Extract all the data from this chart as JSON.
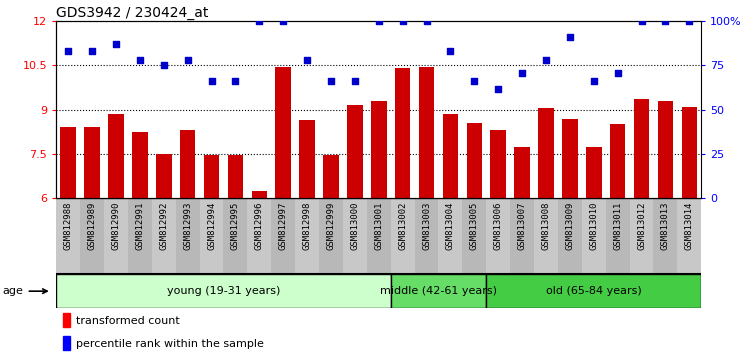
{
  "title": "GDS3942 / 230424_at",
  "samples": [
    "GSM812988",
    "GSM812989",
    "GSM812990",
    "GSM812991",
    "GSM812992",
    "GSM812993",
    "GSM812994",
    "GSM812995",
    "GSM812996",
    "GSM812997",
    "GSM812998",
    "GSM812999",
    "GSM813000",
    "GSM813001",
    "GSM813002",
    "GSM813003",
    "GSM813004",
    "GSM813005",
    "GSM813006",
    "GSM813007",
    "GSM813008",
    "GSM813009",
    "GSM813010",
    "GSM813011",
    "GSM813012",
    "GSM813013",
    "GSM813014"
  ],
  "bar_values": [
    8.4,
    8.4,
    8.85,
    8.25,
    7.5,
    8.3,
    7.45,
    7.45,
    6.25,
    10.45,
    8.65,
    7.45,
    9.15,
    9.3,
    10.4,
    10.45,
    8.85,
    8.55,
    8.3,
    7.75,
    9.05,
    8.7,
    7.75,
    8.5,
    9.35,
    9.3,
    9.1
  ],
  "scatter_pct": [
    83,
    83,
    87,
    78,
    75,
    78,
    66,
    66,
    100,
    100,
    78,
    66,
    66,
    100,
    100,
    100,
    83,
    66,
    62,
    71,
    78,
    91,
    66,
    71,
    100,
    100,
    100
  ],
  "bar_color": "#cc0000",
  "scatter_color": "#0000cc",
  "ylim_left": [
    6,
    12
  ],
  "yticks_left": [
    6,
    7.5,
    9,
    10.5,
    12
  ],
  "ylim_right": [
    0,
    100
  ],
  "yticks_right": [
    0,
    25,
    50,
    75,
    100
  ],
  "groups": [
    {
      "label": "young (19-31 years)",
      "start": 0,
      "end": 14,
      "color": "#ccffcc"
    },
    {
      "label": "middle (42-61 years)",
      "start": 14,
      "end": 18,
      "color": "#66dd66"
    },
    {
      "label": "old (65-84 years)",
      "start": 18,
      "end": 27,
      "color": "#44cc44"
    }
  ],
  "xlabel_age": "age",
  "legend_bar": "transformed count",
  "legend_scatter": "percentile rank within the sample",
  "tick_label_size": 6.5,
  "bar_width": 0.65,
  "grid_color": "#444444",
  "label_bg_color": "#c8c8c8"
}
